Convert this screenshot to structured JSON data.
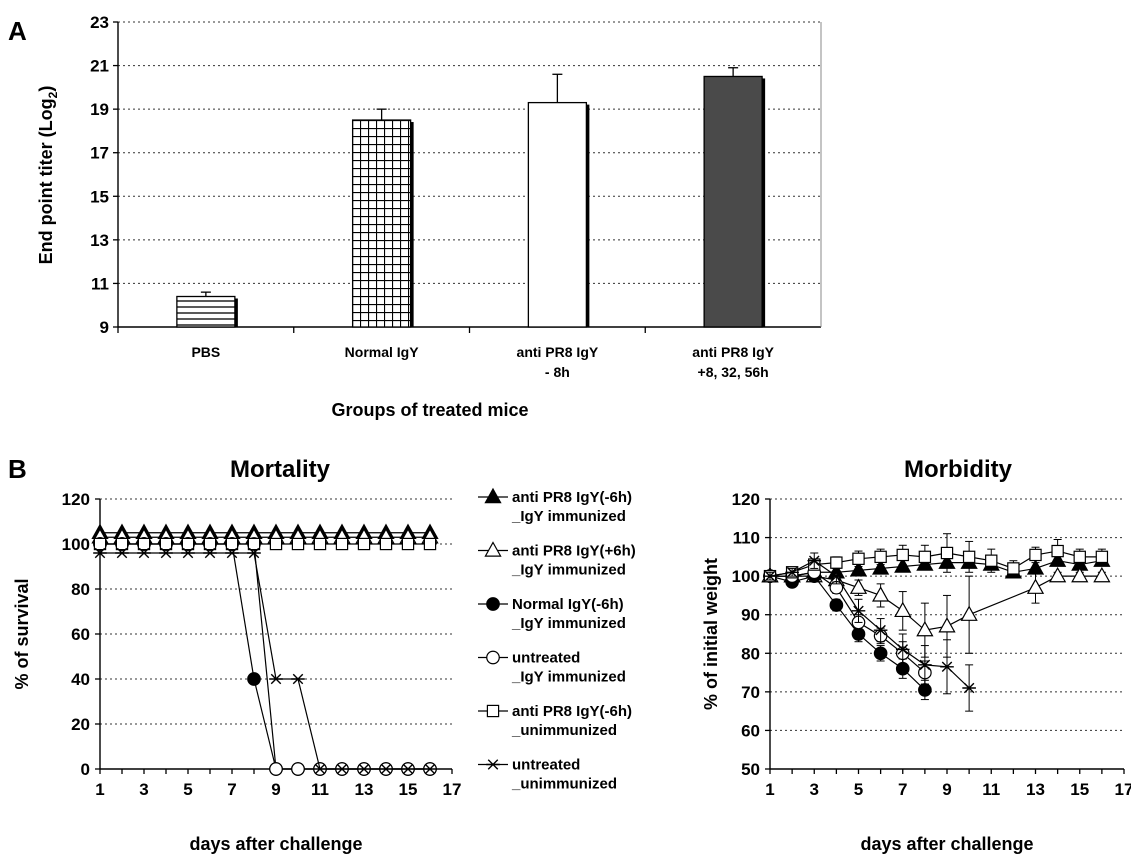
{
  "panel_a_label": "A",
  "panel_b_label": "B",
  "chart_data": [
    {
      "type": "bar",
      "categories": [
        [
          "PBS"
        ],
        [
          "Normal IgY"
        ],
        [
          "anti PR8 IgY",
          "- 8h"
        ],
        [
          "anti PR8 IgY",
          "+8, 32, 56h"
        ]
      ],
      "values": [
        10.4,
        18.5,
        19.3,
        20.5
      ],
      "errors": [
        0.2,
        0.5,
        1.3,
        0.4
      ],
      "fills": [
        "hstripes",
        "grid",
        "white",
        "dark"
      ],
      "title": "",
      "xlabel": "Groups of treated mice",
      "ylabel": "End point titer (Log",
      "ylabel_sub": "2",
      "ylabel_end": ")",
      "ylim": [
        9,
        23
      ],
      "yticks": [
        9,
        11,
        13,
        15,
        17,
        19,
        21,
        23
      ],
      "grid": true
    },
    {
      "type": "line",
      "title": "Mortality",
      "xlabel": "days after challenge",
      "ylabel": "% of survival",
      "xlim": [
        1,
        17
      ],
      "ylim": [
        0,
        120
      ],
      "xticks": [
        1,
        3,
        5,
        7,
        9,
        11,
        13,
        15,
        17
      ],
      "yticks": [
        0,
        20,
        40,
        60,
        80,
        100,
        120
      ],
      "grid": true,
      "legend_position": "right",
      "series": [
        {
          "name": "anti PR8 IgY(-6h)\n_IgY immunized",
          "marker": "triangle-filled",
          "x": [
            1,
            2,
            3,
            4,
            5,
            6,
            7,
            8,
            9,
            10,
            11,
            12,
            13,
            14,
            15,
            16
          ],
          "y": [
            105,
            105,
            105,
            105,
            105,
            105,
            105,
            105,
            105,
            105,
            105,
            105,
            105,
            105,
            105,
            105
          ]
        },
        {
          "name": "anti PR8 IgY(+6h)\n_IgY immunized",
          "marker": "triangle-open",
          "x": [
            1,
            2,
            3,
            4,
            5,
            6,
            7,
            8,
            9,
            10,
            11,
            12,
            13,
            14,
            15,
            16
          ],
          "y": [
            103,
            103,
            103,
            103,
            103,
            103,
            103,
            103,
            103,
            103,
            103,
            103,
            103,
            103,
            103,
            103
          ]
        },
        {
          "name": "Normal IgY(-6h)\n_IgY immunized",
          "marker": "circle-filled",
          "x": [
            1,
            2,
            3,
            4,
            5,
            6,
            7,
            8,
            9,
            10,
            11,
            12,
            13,
            14,
            15,
            16
          ],
          "y": [
            100,
            100,
            100,
            100,
            100,
            100,
            100,
            40,
            0,
            0,
            0,
            0,
            0,
            0,
            0,
            0
          ]
        },
        {
          "name": "untreated\n_IgY immunized",
          "marker": "circle-open",
          "x": [
            1,
            2,
            3,
            4,
            5,
            6,
            7,
            8,
            9,
            10,
            11,
            12,
            13,
            14,
            15,
            16
          ],
          "y": [
            100,
            100,
            100,
            100,
            100,
            100,
            100,
            100,
            0,
            0,
            0,
            0,
            0,
            0,
            0,
            0
          ]
        },
        {
          "name": "anti PR8 IgY(-6h)\n_unimmunized",
          "marker": "square-open",
          "x": [
            1,
            2,
            3,
            4,
            5,
            6,
            7,
            8,
            9,
            10,
            11,
            12,
            13,
            14,
            15,
            16
          ],
          "y": [
            100,
            100,
            100,
            100,
            100,
            100,
            100,
            100,
            100,
            100,
            100,
            100,
            100,
            100,
            100,
            100
          ]
        },
        {
          "name": "untreated\n_unimmunized",
          "marker": "star",
          "x": [
            1,
            2,
            3,
            4,
            5,
            6,
            7,
            8,
            9,
            10,
            11,
            12,
            13,
            14,
            15,
            16
          ],
          "y": [
            96,
            96,
            96,
            96,
            96,
            96,
            96,
            96,
            40,
            40,
            0,
            0,
            0,
            0,
            0,
            0
          ]
        }
      ]
    },
    {
      "type": "line",
      "title": "Morbidity",
      "xlabel": "days after challenge",
      "ylabel": "% of initial weight",
      "xlim": [
        1,
        17
      ],
      "ylim": [
        50,
        120
      ],
      "xticks": [
        1,
        3,
        5,
        7,
        9,
        11,
        13,
        15,
        17
      ],
      "yticks": [
        50,
        60,
        70,
        80,
        90,
        100,
        110,
        120
      ],
      "grid": true,
      "series": [
        {
          "marker": "triangle-filled",
          "x": [
            1,
            2,
            3,
            4,
            5,
            6,
            7,
            8,
            9,
            10,
            11,
            12,
            13,
            14,
            15,
            16
          ],
          "y": [
            100,
            100,
            101,
            101,
            101.5,
            102,
            102.5,
            103,
            103.5,
            103.5,
            103,
            101,
            102,
            104,
            103,
            104
          ]
        },
        {
          "marker": "triangle-open",
          "x": [
            1,
            2,
            3,
            4,
            5,
            6,
            7,
            8,
            9,
            10,
            13,
            14,
            15,
            16
          ],
          "y": [
            100,
            100,
            100,
            99,
            97,
            95,
            91,
            86,
            87,
            90,
            97,
            100,
            100,
            100
          ],
          "err": [
            1,
            1,
            1,
            1.5,
            2,
            3,
            5,
            7,
            8,
            10,
            4,
            1,
            1,
            1
          ]
        },
        {
          "marker": "circle-filled",
          "x": [
            1,
            2,
            3,
            4,
            5,
            6,
            7,
            8
          ],
          "y": [
            100,
            98.5,
            100,
            92.5,
            85,
            80,
            76,
            70.5
          ],
          "err": [
            1,
            1,
            1,
            1.5,
            2,
            2,
            2.5,
            2.5
          ]
        },
        {
          "marker": "circle-open",
          "x": [
            1,
            2,
            3,
            4,
            5,
            6,
            7,
            8
          ],
          "y": [
            100,
            100,
            101,
            97,
            88,
            84.5,
            80,
            75
          ],
          "err": [
            1,
            1,
            1,
            1.5,
            2,
            2,
            3,
            3
          ]
        },
        {
          "marker": "square-open",
          "x": [
            1,
            2,
            3,
            4,
            5,
            6,
            7,
            8,
            9,
            10,
            11,
            12,
            13,
            14,
            15,
            16
          ],
          "y": [
            100,
            101,
            103,
            103.5,
            104.5,
            105,
            105.5,
            105,
            106,
            105,
            104,
            102,
            105.5,
            106.5,
            105,
            105
          ],
          "err": [
            1,
            1,
            1,
            1.5,
            2,
            2,
            2.5,
            3,
            5,
            4,
            3,
            2,
            2,
            3,
            2,
            2
          ]
        },
        {
          "marker": "star",
          "x": [
            1,
            2,
            3,
            4,
            5,
            6,
            7,
            8,
            9,
            10
          ],
          "y": [
            100,
            101,
            104,
            100,
            91,
            86,
            81,
            77,
            76.5,
            71
          ],
          "err": [
            1,
            1,
            2,
            2,
            3,
            3,
            4,
            5,
            7,
            6
          ]
        }
      ]
    }
  ]
}
